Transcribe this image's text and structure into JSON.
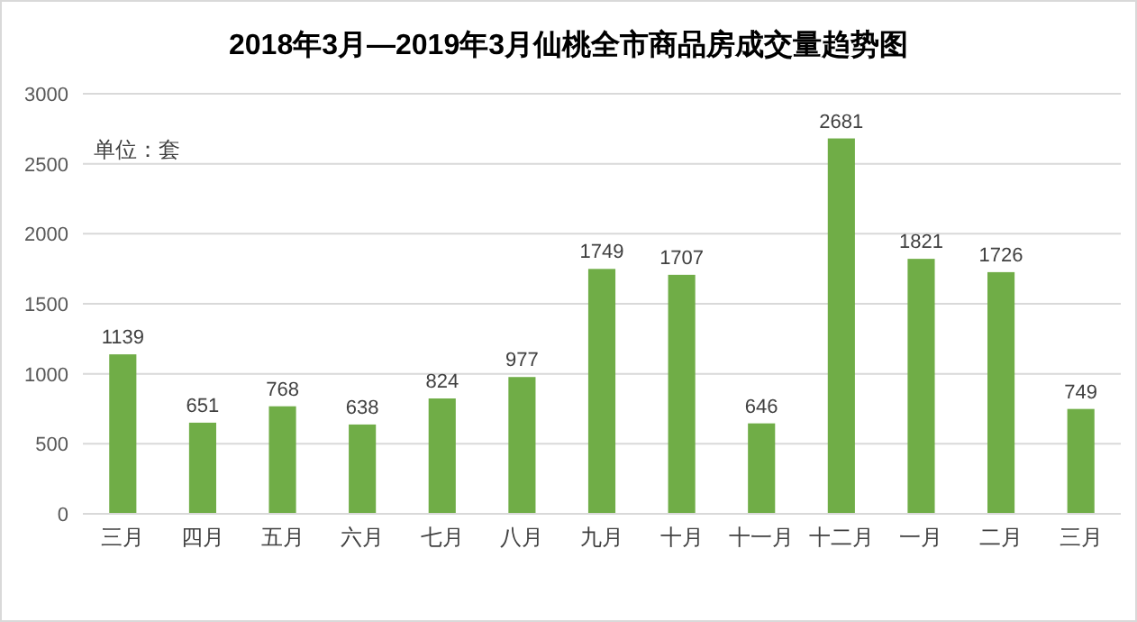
{
  "chart_data": {
    "type": "bar",
    "title": "2018年3月—2019年3月仙桃全市商品房成交量趋势图",
    "categories": [
      "三月",
      "四月",
      "五月",
      "六月",
      "七月",
      "八月",
      "九月",
      "十月",
      "十一月",
      "十二月",
      "一月",
      "二月",
      "三月"
    ],
    "values": [
      1139,
      651,
      768,
      638,
      824,
      977,
      1749,
      1707,
      646,
      2681,
      1821,
      1726,
      749
    ],
    "color": "#70ad47",
    "ylim": [
      0,
      3000
    ],
    "yticks": [
      0,
      500,
      1000,
      1500,
      2000,
      2500,
      3000
    ],
    "grid": "y",
    "data_labels": true,
    "annotations": [
      "单位：套"
    ]
  }
}
